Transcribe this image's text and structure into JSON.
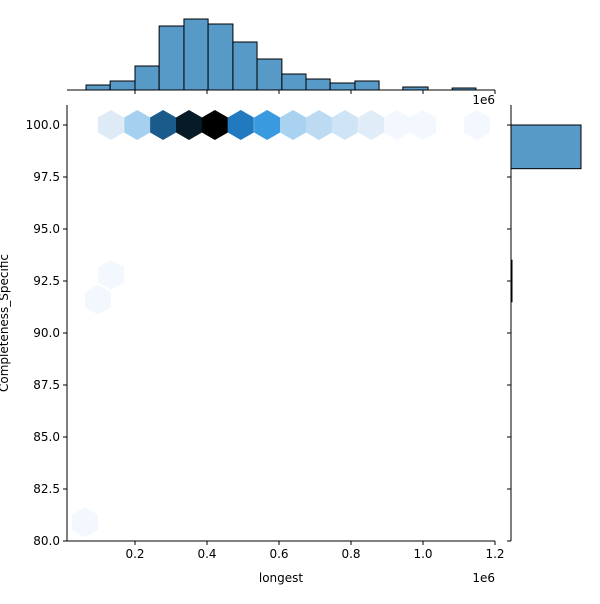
{
  "chart_data": {
    "type": "hexbin",
    "title": "",
    "xlabel": "longest",
    "ylabel": "Completeness_Specific",
    "x_offset_label": "1e6",
    "top_offset_label": "1e6",
    "xlim": [
      0.0,
      1.23
    ],
    "ylim": [
      79.8,
      101.0
    ],
    "x_ticks": [
      "0.2",
      "0.4",
      "0.6",
      "0.8",
      "1.0",
      "1.2"
    ],
    "y_ticks": [
      "80.0",
      "82.5",
      "85.0",
      "87.5",
      "90.0",
      "92.5",
      "95.0",
      "97.5",
      "100.0"
    ],
    "hexbins": [
      {
        "x": 0.133,
        "y": 100.0,
        "color": "#deebf7"
      },
      {
        "x": 0.206,
        "y": 100.0,
        "color": "#a6d0ef"
      },
      {
        "x": 0.278,
        "y": 100.0,
        "color": "#1b5b8c"
      },
      {
        "x": 0.35,
        "y": 100.0,
        "color": "#061a28"
      },
      {
        "x": 0.422,
        "y": 100.0,
        "color": "#000000"
      },
      {
        "x": 0.494,
        "y": 100.0,
        "color": "#217ac0"
      },
      {
        "x": 0.567,
        "y": 100.0,
        "color": "#3a9ae0"
      },
      {
        "x": 0.639,
        "y": 100.0,
        "color": "#a9d1f0"
      },
      {
        "x": 0.711,
        "y": 100.0,
        "color": "#bcdbf3"
      },
      {
        "x": 0.783,
        "y": 100.0,
        "color": "#cfe4f5"
      },
      {
        "x": 0.856,
        "y": 100.0,
        "color": "#e0edf8"
      },
      {
        "x": 0.928,
        "y": 100.0,
        "color": "#f2f8fd"
      },
      {
        "x": 1.0,
        "y": 100.0,
        "color": "#f2f8fd"
      },
      {
        "x": 1.15,
        "y": 100.0,
        "color": "#f2f8fd"
      },
      {
        "x": 0.133,
        "y": 92.8,
        "color": "#f2f8fd"
      },
      {
        "x": 0.097,
        "y": 91.6,
        "color": "#f2f8fd"
      },
      {
        "x": 0.061,
        "y": 80.9,
        "color": "#f2f8fd"
      }
    ],
    "top_histogram": {
      "bin_edges_1e6": [
        0.064,
        0.131,
        0.2,
        0.267,
        0.336,
        0.403,
        0.472,
        0.539,
        0.608,
        0.675,
        0.742,
        0.811,
        0.878,
        0.944,
        1.014,
        1.081,
        1.147
      ],
      "relative_heights": [
        5,
        9,
        24,
        64,
        71,
        66,
        48,
        31,
        16,
        11,
        7,
        9,
        0,
        3,
        0,
        2
      ]
    },
    "right_histogram": {
      "bins": [
        {
          "y_from": 97.9,
          "y_to": 100.0,
          "relative_width": 70
        },
        {
          "y_from": 91.5,
          "y_to": 93.5,
          "relative_width": 1
        }
      ]
    },
    "bar_color": "#5799c7",
    "edge_color": "#000000"
  }
}
